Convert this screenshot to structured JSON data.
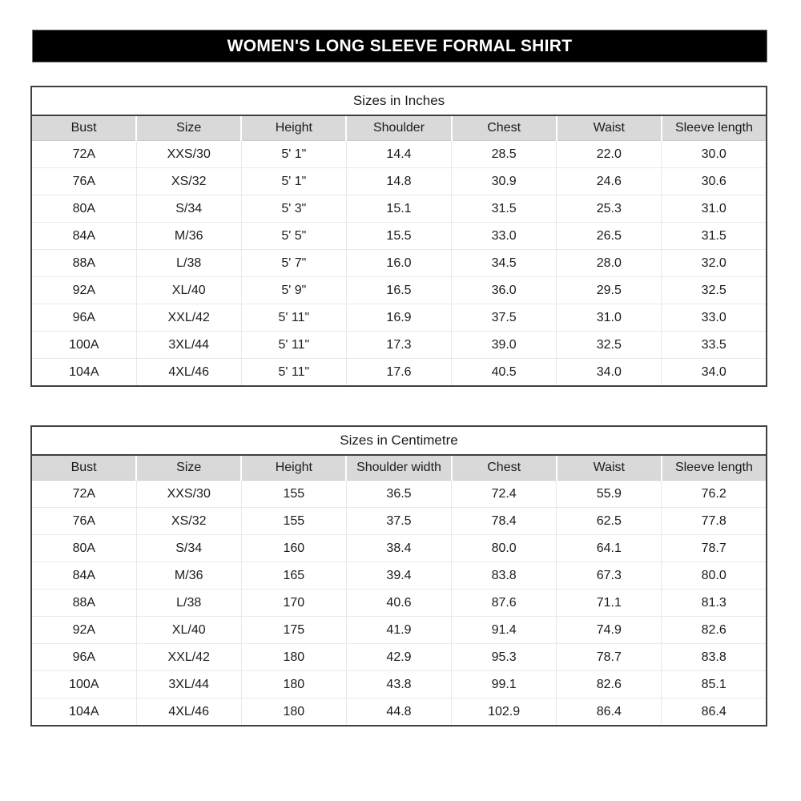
{
  "title_bar": {
    "label": "WOMEN'S LONG SLEEVE FORMAL SHIRT"
  },
  "colors": {
    "title_bg": "#000000",
    "title_text": "#ffffff",
    "header_row_bg": "#d9d9d9",
    "outer_border": "#404040",
    "grid_line": "#e9e9e9",
    "body_text": "#1b1b1b"
  },
  "tables": [
    {
      "caption": "Sizes in Inches",
      "columns": [
        "Bust",
        "Size",
        "Height",
        "Shoulder",
        "Chest",
        "Waist",
        "Sleeve length"
      ],
      "rows": [
        [
          "72A",
          "XXS/30",
          "5' 1\"",
          "14.4",
          "28.5",
          "22.0",
          "30.0"
        ],
        [
          "76A",
          "XS/32",
          "5' 1\"",
          "14.8",
          "30.9",
          "24.6",
          "30.6"
        ],
        [
          "80A",
          "S/34",
          "5' 3\"",
          "15.1",
          "31.5",
          "25.3",
          "31.0"
        ],
        [
          "84A",
          "M/36",
          "5' 5\"",
          "15.5",
          "33.0",
          "26.5",
          "31.5"
        ],
        [
          "88A",
          "L/38",
          "5' 7\"",
          "16.0",
          "34.5",
          "28.0",
          "32.0"
        ],
        [
          "92A",
          "XL/40",
          "5' 9\"",
          "16.5",
          "36.0",
          "29.5",
          "32.5"
        ],
        [
          "96A",
          "XXL/42",
          "5' 11\"",
          "16.9",
          "37.5",
          "31.0",
          "33.0"
        ],
        [
          "100A",
          "3XL/44",
          "5' 11\"",
          "17.3",
          "39.0",
          "32.5",
          "33.5"
        ],
        [
          "104A",
          "4XL/46",
          "5' 11\"",
          "17.6",
          "40.5",
          "34.0",
          "34.0"
        ]
      ]
    },
    {
      "caption": "Sizes in Centimetre",
      "columns": [
        "Bust",
        "Size",
        "Height",
        "Shoulder width",
        "Chest",
        "Waist",
        "Sleeve length"
      ],
      "rows": [
        [
          "72A",
          "XXS/30",
          "155",
          "36.5",
          "72.4",
          "55.9",
          "76.2"
        ],
        [
          "76A",
          "XS/32",
          "155",
          "37.5",
          "78.4",
          "62.5",
          "77.8"
        ],
        [
          "80A",
          "S/34",
          "160",
          "38.4",
          "80.0",
          "64.1",
          "78.7"
        ],
        [
          "84A",
          "M/36",
          "165",
          "39.4",
          "83.8",
          "67.3",
          "80.0"
        ],
        [
          "88A",
          "L/38",
          "170",
          "40.6",
          "87.6",
          "71.1",
          "81.3"
        ],
        [
          "92A",
          "XL/40",
          "175",
          "41.9",
          "91.4",
          "74.9",
          "82.6"
        ],
        [
          "96A",
          "XXL/42",
          "180",
          "42.9",
          "95.3",
          "78.7",
          "83.8"
        ],
        [
          "100A",
          "3XL/44",
          "180",
          "43.8",
          "99.1",
          "82.6",
          "85.1"
        ],
        [
          "104A",
          "4XL/46",
          "180",
          "44.8",
          "102.9",
          "86.4",
          "86.4"
        ]
      ]
    }
  ]
}
